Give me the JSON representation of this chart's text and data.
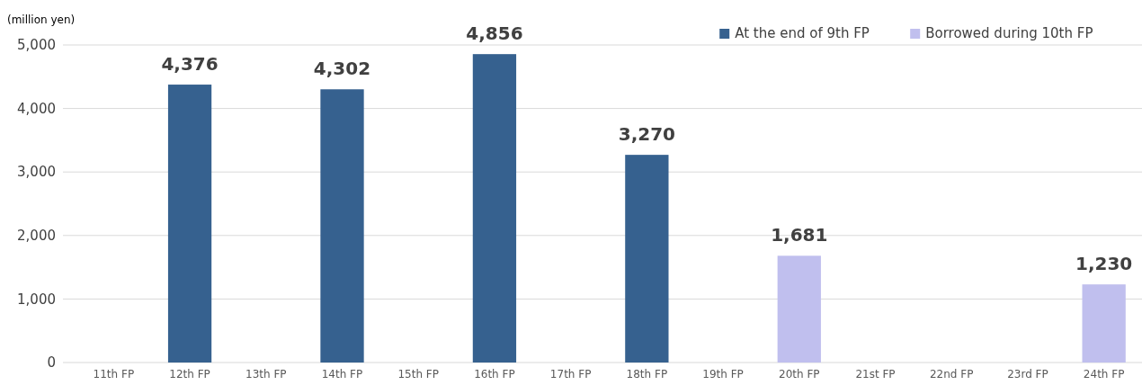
{
  "chart_data": {
    "type": "bar",
    "ylabel": "(million yen)",
    "categories": [
      "11th FP",
      "12th FP",
      "13th FP",
      "14th FP",
      "15th FP",
      "16th FP",
      "17th FP",
      "18th FP",
      "19th FP",
      "20th FP",
      "21st FP",
      "22nd FP",
      "23rd FP",
      "24th FP"
    ],
    "series": [
      {
        "name": "At the end of 9th FP",
        "color": "#36618f",
        "values": [
          null,
          4376,
          null,
          4302,
          null,
          4856,
          null,
          3270,
          null,
          null,
          null,
          null,
          null,
          null
        ],
        "value_labels": [
          null,
          "4,376",
          null,
          "4,302",
          null,
          "4,856",
          null,
          "3,270",
          null,
          null,
          null,
          null,
          null,
          null
        ]
      },
      {
        "name": "Borrowed during 10th FP",
        "color": "#c0bfee",
        "values": [
          null,
          null,
          null,
          null,
          null,
          null,
          null,
          null,
          null,
          1681,
          null,
          null,
          null,
          1230
        ],
        "value_labels": [
          null,
          null,
          null,
          null,
          null,
          null,
          null,
          null,
          null,
          "1,681",
          null,
          null,
          null,
          "1,230"
        ]
      }
    ],
    "ylim": [
      0,
      5000
    ],
    "yticks": [
      {
        "value": 0,
        "label": "0"
      },
      {
        "value": 1000,
        "label": "1,000"
      },
      {
        "value": 2000,
        "label": "2,000"
      },
      {
        "value": 3000,
        "label": "3,000"
      },
      {
        "value": 4000,
        "label": "4,000"
      },
      {
        "value": 5000,
        "label": "5,000"
      }
    ],
    "grid": "y",
    "legend": "top right"
  }
}
